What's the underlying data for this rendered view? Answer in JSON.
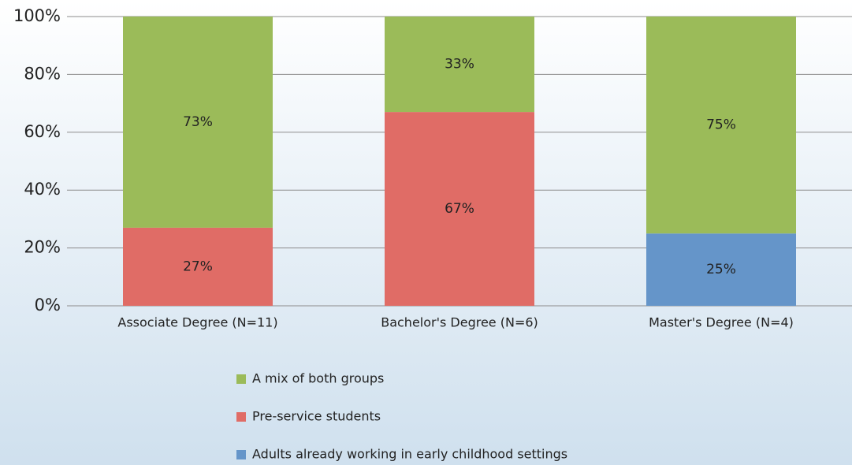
{
  "chart_data": {
    "type": "stacked-bar",
    "categories": [
      "Associate Degree (N=11)",
      "Bachelor's Degree (N=6)",
      "Master's Degree (N=4)"
    ],
    "series": [
      {
        "name": "A mix of both groups",
        "color": "#9bbb59",
        "values": [
          73,
          33,
          75
        ],
        "value_labels": [
          "73%",
          "33%",
          "75%"
        ]
      },
      {
        "name": "Pre-service students",
        "color": "#e06c66",
        "values": [
          27,
          67,
          0
        ],
        "value_labels": [
          "27%",
          "67%",
          null
        ]
      },
      {
        "name": "Adults already working in early childhood settings",
        "color": "#6595c9",
        "values": [
          0,
          0,
          25
        ],
        "value_labels": [
          null,
          null,
          "25%"
        ]
      }
    ],
    "ylim": [
      0,
      100
    ],
    "yticks": [
      {
        "value": 0,
        "label": "0%"
      },
      {
        "value": 20,
        "label": "20%"
      },
      {
        "value": 40,
        "label": "40%"
      },
      {
        "value": 60,
        "label": "60%"
      },
      {
        "value": 80,
        "label": "80%"
      },
      {
        "value": 100,
        "label": "100%"
      }
    ],
    "grid": true,
    "legend": "bottom"
  }
}
